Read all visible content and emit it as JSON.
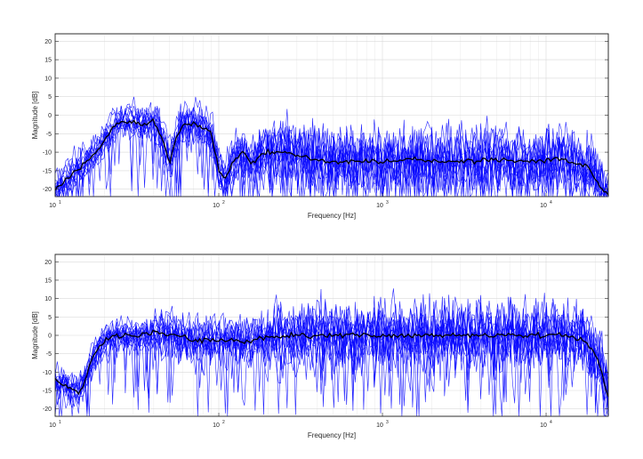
{
  "chart_data": [
    {
      "type": "line",
      "xscale": "log",
      "xlim": [
        10,
        24000
      ],
      "ylim": [
        -22,
        22
      ],
      "xlabel": "Frequency [Hz]",
      "ylabel": "Magnitude [dB]",
      "grid": true,
      "x_ticks": [
        {
          "value": 10,
          "base": "10",
          "exp": "1"
        },
        {
          "value": 100,
          "base": "10",
          "exp": "2"
        },
        {
          "value": 1000,
          "base": "10",
          "exp": "3"
        },
        {
          "value": 10000,
          "base": "10",
          "exp": "4"
        }
      ],
      "y_ticks": [
        20,
        15,
        10,
        5,
        0,
        -5,
        -10,
        -15,
        -20
      ],
      "individual_color": "#0000ff",
      "mean_color": "#000000",
      "individual_count": 14,
      "mean_curve": {
        "x": [
          10,
          12,
          15,
          18,
          22,
          25,
          30,
          35,
          40,
          45,
          50,
          55,
          60,
          70,
          80,
          90,
          100,
          110,
          120,
          140,
          160,
          180,
          200,
          250,
          300,
          400,
          500,
          700,
          1000,
          1500,
          2000,
          3000,
          5000,
          7000,
          10000,
          12000,
          14000,
          16000,
          18000,
          20000,
          22000,
          24000
        ],
        "y": [
          -20,
          -17,
          -13,
          -10,
          -4,
          -1.5,
          -2,
          -2.5,
          -1.5,
          -6,
          -13,
          -6,
          -3,
          -2.5,
          -3.5,
          -5,
          -15,
          -17,
          -13,
          -10,
          -13,
          -11,
          -10,
          -10,
          -11,
          -12,
          -12.5,
          -12.5,
          -12.5,
          -12,
          -12.5,
          -12.5,
          -12,
          -12.5,
          -12,
          -12,
          -12.5,
          -13,
          -14,
          -17,
          -20,
          -22
        ]
      }
    },
    {
      "type": "line",
      "xscale": "log",
      "xlim": [
        10,
        24000
      ],
      "ylim": [
        -22,
        22
      ],
      "xlabel": "Frequency [Hz]",
      "ylabel": "Magnitude [dB]",
      "grid": true,
      "x_ticks": [
        {
          "value": 10,
          "base": "10",
          "exp": "1"
        },
        {
          "value": 100,
          "base": "10",
          "exp": "2"
        },
        {
          "value": 1000,
          "base": "10",
          "exp": "3"
        },
        {
          "value": 10000,
          "base": "10",
          "exp": "4"
        }
      ],
      "y_ticks": [
        20,
        15,
        10,
        5,
        0,
        -5,
        -10,
        -15,
        -20
      ],
      "individual_color": "#0000ff",
      "mean_color": "#000000",
      "individual_count": 14,
      "mean_curve": {
        "x": [
          10,
          11,
          12,
          13,
          14,
          15,
          16,
          17,
          18,
          20,
          22,
          25,
          30,
          35,
          40,
          45,
          50,
          60,
          70,
          80,
          100,
          120,
          150,
          200,
          300,
          500,
          1000,
          2000,
          3000,
          5000,
          8000,
          10000,
          12000,
          14000,
          16000,
          18000,
          20000,
          22000,
          24000
        ],
        "y": [
          -12,
          -13,
          -14,
          -15,
          -15.5,
          -13,
          -9,
          -6,
          -4,
          -1.5,
          -0.5,
          0,
          0,
          0.3,
          0.5,
          0.5,
          0.3,
          -0.5,
          -1,
          -1.5,
          -1,
          -1.5,
          -1.5,
          -0.5,
          0,
          0,
          0,
          0,
          0,
          0,
          0,
          0,
          0,
          -0.5,
          -1,
          -2.5,
          -5,
          -10,
          -17
        ]
      }
    }
  ]
}
